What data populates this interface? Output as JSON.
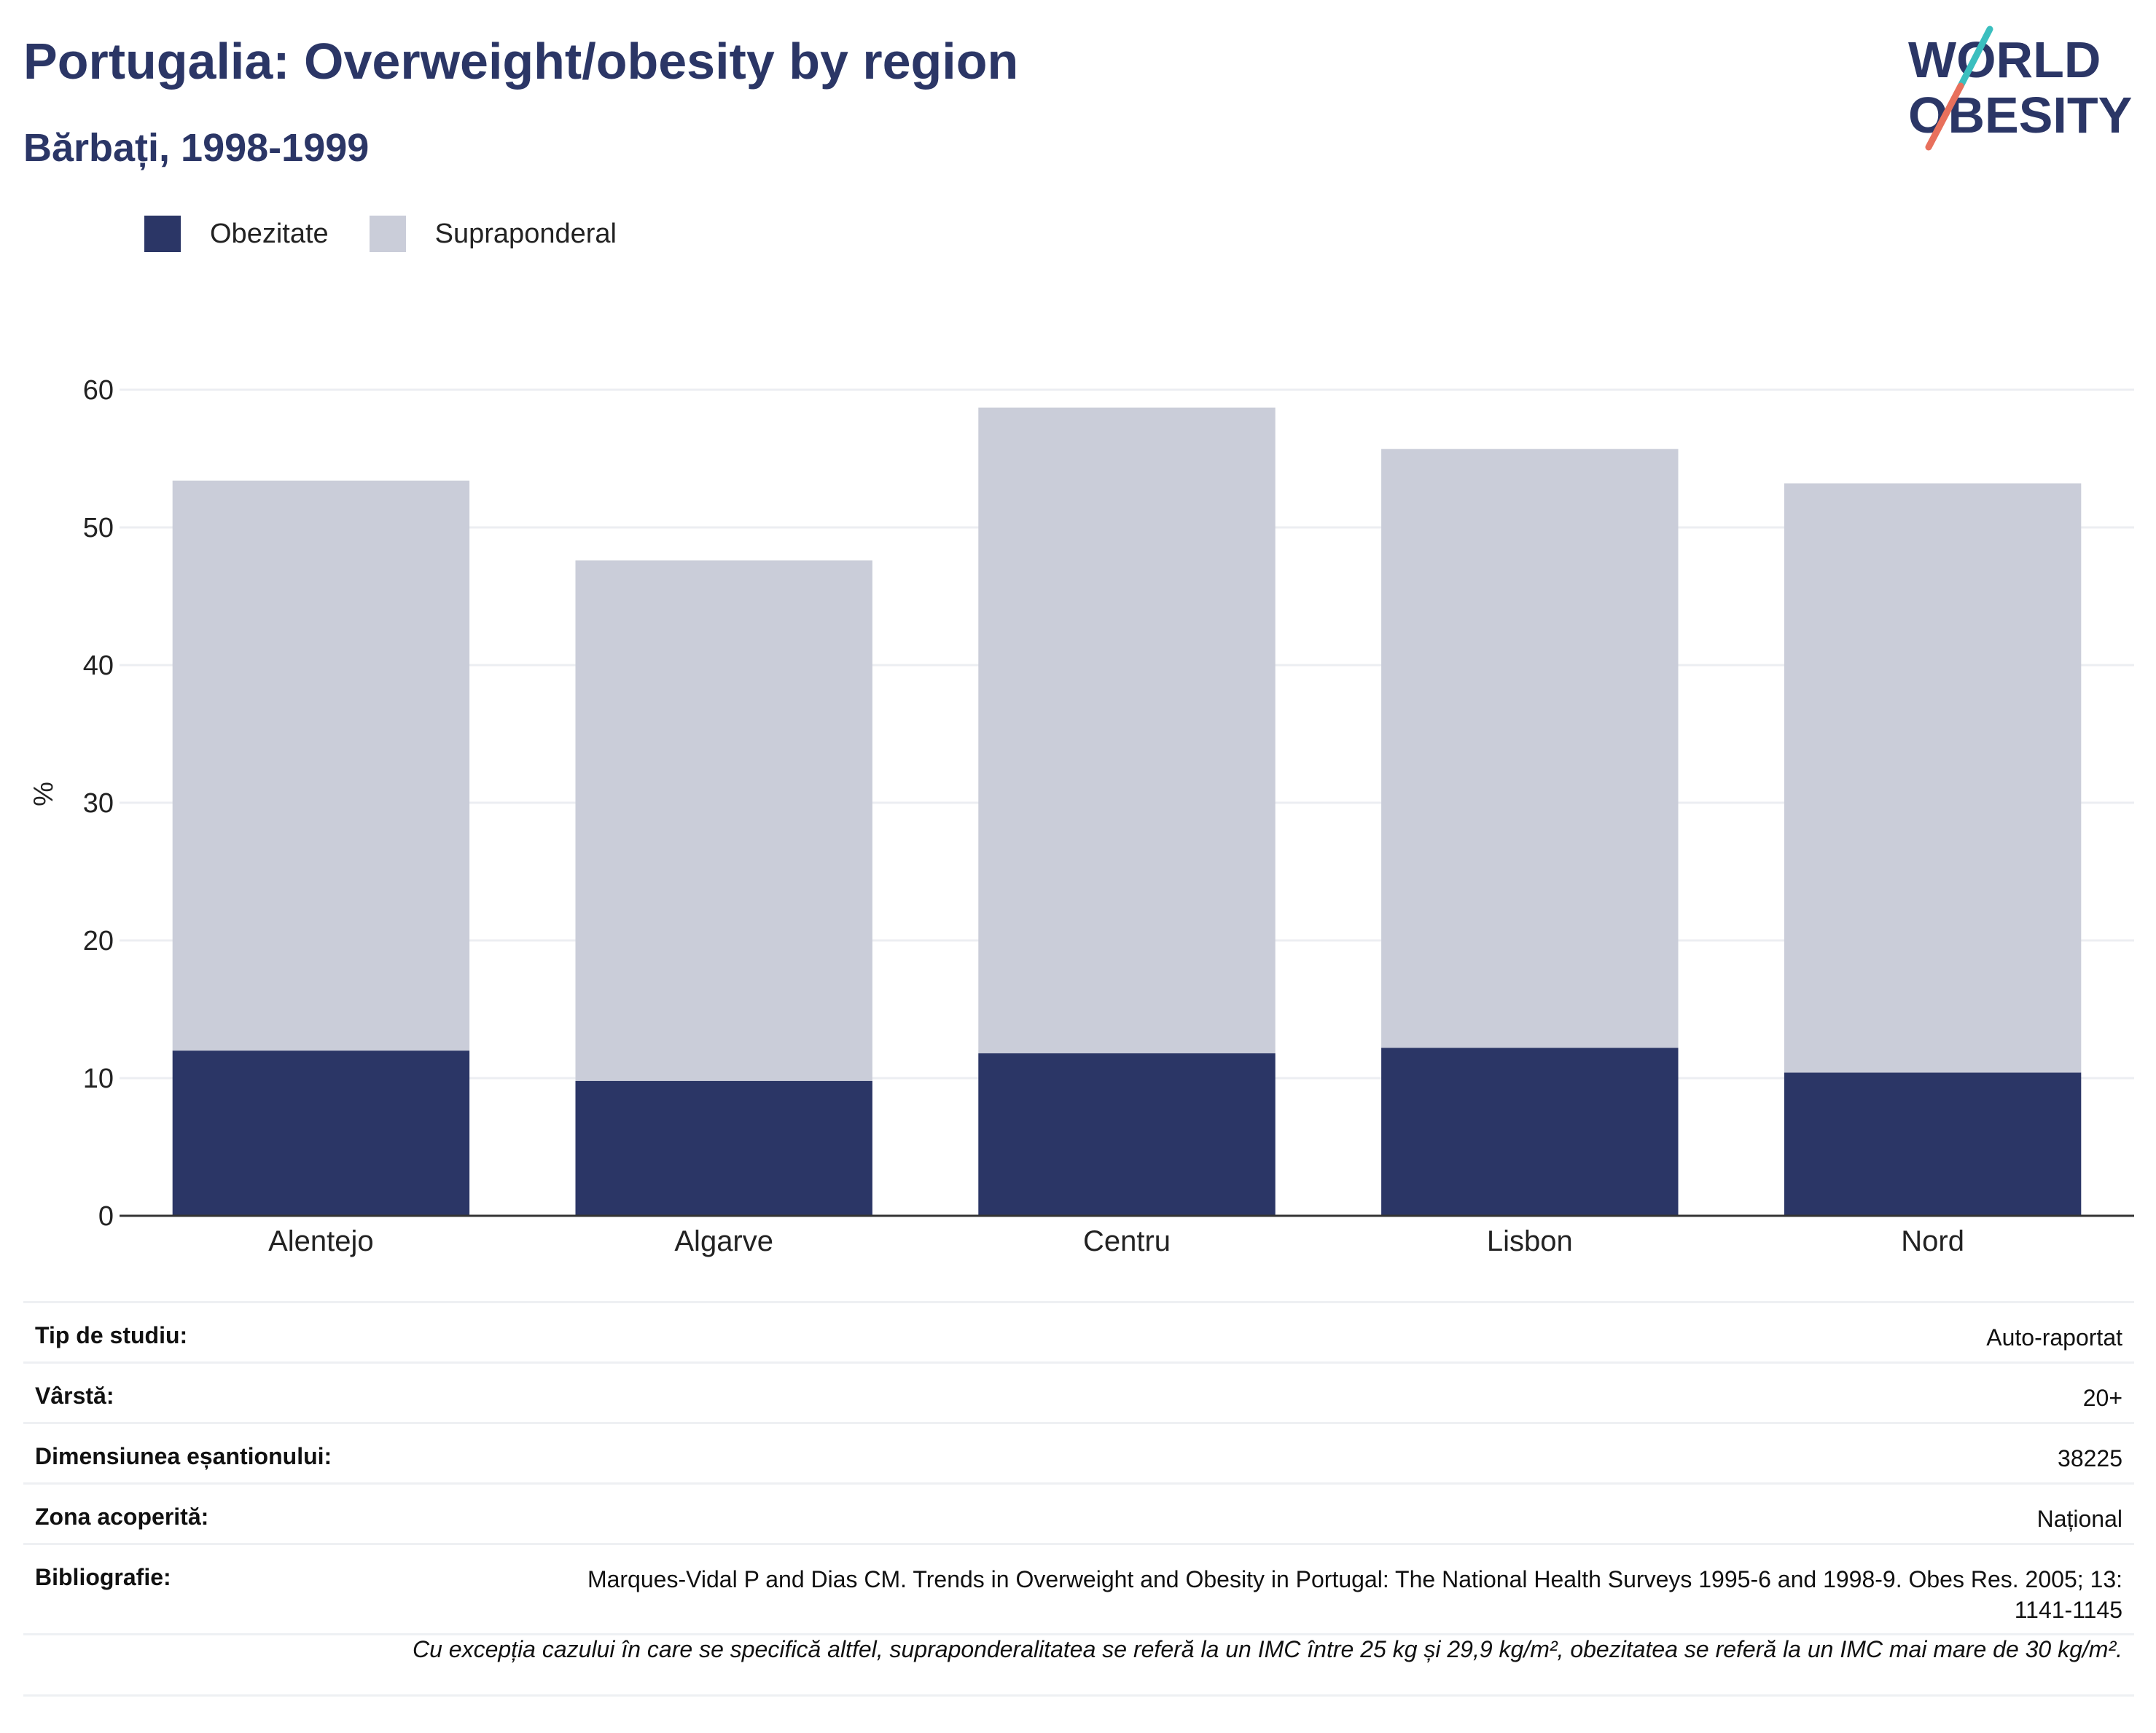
{
  "header": {
    "title": "Portugalia: Overweight/obesity by region",
    "subtitle": "Bărbați, 1998-1999"
  },
  "logo": {
    "line1": "WORLD",
    "line2": "OBESITY",
    "accent_teal": "#3bbfbf",
    "accent_red": "#e8705c",
    "color": "#2b3666"
  },
  "legend": [
    {
      "label": "Obezitate",
      "color": "#2b3666"
    },
    {
      "label": "Supraponderal",
      "color": "#cacdd9"
    }
  ],
  "chart_data": {
    "type": "bar",
    "stacked": true,
    "categories": [
      "Alentejo",
      "Algarve",
      "Centru",
      "Lisbon",
      "Nord"
    ],
    "series": [
      {
        "name": "Obezitate",
        "values": [
          12.0,
          9.8,
          11.8,
          12.2,
          10.4
        ],
        "color": "#2b3666"
      },
      {
        "name": "Supraponderal",
        "values": [
          41.4,
          37.8,
          46.9,
          43.5,
          42.8
        ],
        "color": "#cacdd9"
      }
    ],
    "ylabel": "%",
    "ylim": [
      0,
      60
    ],
    "yticks": [
      0,
      10,
      20,
      30,
      40,
      50,
      60
    ],
    "grid": true,
    "legend_position": "top-left"
  },
  "info": [
    {
      "key": "Tip de studiu:",
      "value": "Auto-raportat"
    },
    {
      "key": "Vârstă:",
      "value": "20+"
    },
    {
      "key": "Dimensiunea eșantionului:",
      "value": "38225"
    },
    {
      "key": "Zona acoperită:",
      "value": "Național"
    },
    {
      "key": "Bibliografie:",
      "value": "Marques-Vidal P and Dias CM. Trends in Overweight and Obesity in Portugal: The National Health Surveys 1995-6 and 1998-9. Obes Res. 2005; 13: 1141-1145"
    }
  ],
  "note": "Cu excepția cazului în care se specifică altfel, supraponderalitatea se referă la un IMC între 25 kg și 29,9 kg/m², obezitatea se referă la un IMC mai mare de 30 kg/m²."
}
